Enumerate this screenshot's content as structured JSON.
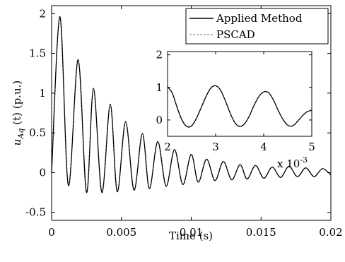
{
  "chart_data": [
    {
      "type": "line",
      "title": "",
      "xlabel": "Time (s)",
      "ylabel_main": "u",
      "ylabel_sub": "Aq",
      "ylabel_rest": " (t) (p.u.)",
      "xlim": [
        0,
        0.02
      ],
      "ylim": [
        -0.6,
        2.1
      ],
      "xticks": [
        0,
        0.005,
        0.01,
        0.015,
        0.02
      ],
      "xtick_labels": [
        "0",
        "0.005",
        "0.01",
        "0.015",
        "0.02"
      ],
      "yticks": [
        -0.5,
        0,
        0.5,
        1,
        1.5,
        2
      ],
      "ytick_labels": [
        "-0.5",
        "0",
        "0.5",
        "1",
        "1.5",
        "2"
      ],
      "legend_position": "top-right",
      "grid": false,
      "series": [
        {
          "name": "Applied Method",
          "color": "#000000",
          "style": "solid",
          "x": [
            0,
            0.0006,
            0.0012,
            0.0019,
            0.0025,
            0.003,
            0.0036,
            0.0042,
            0.0047,
            0.0053,
            0.0059,
            0.0065,
            0.007,
            0.0076,
            0.0082,
            0.0088,
            0.0094,
            0.01,
            0.0105,
            0.0111,
            0.0117,
            0.0123,
            0.0129,
            0.0135,
            0.014,
            0.0146,
            0.0152,
            0.0158,
            0.0164,
            0.017,
            0.0176,
            0.0182,
            0.0188,
            0.0194,
            0.02
          ],
          "y": [
            0,
            1.96,
            -0.16,
            1.42,
            -0.25,
            1.06,
            -0.25,
            0.86,
            -0.24,
            0.64,
            -0.22,
            0.49,
            -0.2,
            0.39,
            -0.17,
            0.29,
            -0.15,
            0.23,
            -0.12,
            0.17,
            -0.1,
            0.14,
            -0.09,
            0.1,
            -0.08,
            0.09,
            -0.07,
            0.07,
            -0.06,
            0.08,
            -0.05,
            0.06,
            -0.05,
            0.05,
            -0.03
          ]
        },
        {
          "name": "PSCAD",
          "color": "#8c8c8c",
          "style": "dashed",
          "x": [
            0,
            0.0006,
            0.0012,
            0.0019,
            0.0025,
            0.003,
            0.0036,
            0.0042,
            0.0047,
            0.0053,
            0.0059,
            0.0065,
            0.007,
            0.0076,
            0.0082,
            0.0088,
            0.0094,
            0.01,
            0.0105,
            0.0111,
            0.0117,
            0.0123,
            0.0129,
            0.0135,
            0.014,
            0.0146,
            0.0152,
            0.0158,
            0.0164,
            0.017,
            0.0176,
            0.0182,
            0.0188,
            0.0194,
            0.02
          ],
          "y": [
            0,
            1.96,
            -0.16,
            1.42,
            -0.25,
            1.06,
            -0.25,
            0.86,
            -0.24,
            0.64,
            -0.22,
            0.49,
            -0.2,
            0.39,
            -0.17,
            0.29,
            -0.15,
            0.23,
            -0.12,
            0.17,
            -0.1,
            0.14,
            -0.09,
            0.1,
            -0.08,
            0.09,
            -0.07,
            0.07,
            -0.06,
            0.08,
            -0.05,
            0.06,
            -0.05,
            0.05,
            -0.03
          ]
        }
      ]
    },
    {
      "type": "line",
      "title": "",
      "xlim": [
        2,
        5
      ],
      "ylim": [
        -0.5,
        2.1
      ],
      "x_multiplier": "x 10",
      "x_multiplier_exp": "-3",
      "xticks": [
        2,
        3,
        4,
        5
      ],
      "xtick_labels": [
        "2",
        "3",
        "4",
        "5"
      ],
      "yticks": [
        0,
        1,
        2
      ],
      "ytick_labels": [
        "0",
        "1",
        "2"
      ],
      "series": [
        {
          "name": "Applied Method",
          "color": "#000000",
          "style": "solid",
          "x": [
            2.0,
            2.1,
            2.2,
            2.3,
            2.4,
            2.5,
            2.6,
            2.7,
            2.8,
            2.9,
            3.0,
            3.1,
            3.2,
            3.3,
            3.4,
            3.5,
            3.6,
            3.7,
            3.8,
            3.9,
            4.0,
            4.1,
            4.2,
            4.3,
            4.4,
            4.5,
            4.6,
            4.7,
            4.8,
            4.9,
            5.0
          ],
          "y": [
            1.02,
            0.82,
            0.38,
            0.0,
            -0.2,
            -0.18,
            0.05,
            0.38,
            0.72,
            0.98,
            1.05,
            0.92,
            0.6,
            0.22,
            -0.08,
            -0.2,
            -0.12,
            0.12,
            0.45,
            0.72,
            0.86,
            0.84,
            0.62,
            0.3,
            0.02,
            -0.16,
            -0.18,
            -0.05,
            0.12,
            0.25,
            0.3
          ]
        },
        {
          "name": "PSCAD",
          "color": "#8c8c8c",
          "style": "dashed",
          "x": [
            2.0,
            2.1,
            2.2,
            2.3,
            2.4,
            2.5,
            2.6,
            2.7,
            2.8,
            2.9,
            3.0,
            3.1,
            3.2,
            3.3,
            3.4,
            3.5,
            3.6,
            3.7,
            3.8,
            3.9,
            4.0,
            4.1,
            4.2,
            4.3,
            4.4,
            4.5,
            4.6,
            4.7,
            4.8,
            4.9,
            5.0
          ],
          "y": [
            1.02,
            0.82,
            0.38,
            0.0,
            -0.2,
            -0.18,
            0.05,
            0.38,
            0.72,
            0.98,
            1.05,
            0.92,
            0.6,
            0.22,
            -0.08,
            -0.2,
            -0.12,
            0.12,
            0.45,
            0.72,
            0.86,
            0.84,
            0.62,
            0.3,
            0.02,
            -0.16,
            -0.18,
            -0.05,
            0.12,
            0.25,
            0.3
          ]
        }
      ]
    }
  ]
}
